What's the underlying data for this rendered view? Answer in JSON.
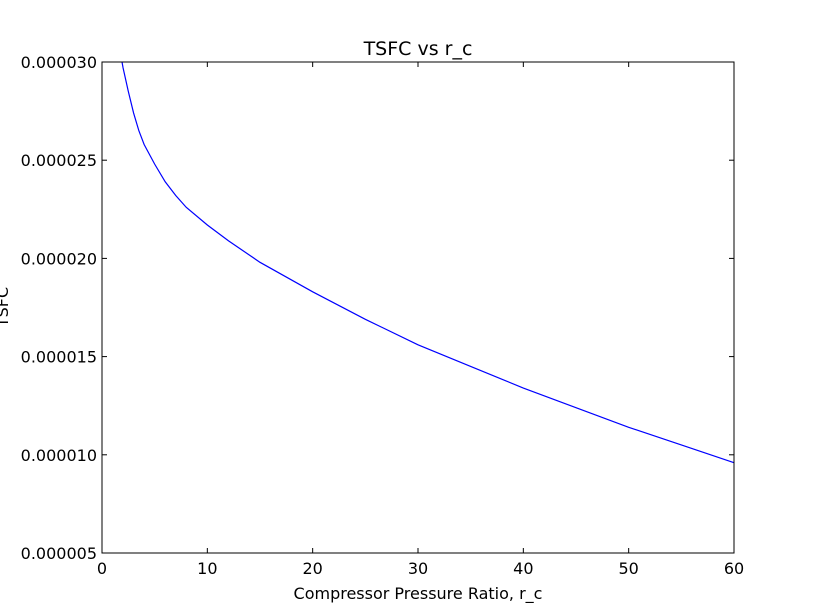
{
  "chart_data": {
    "type": "line",
    "title": "TSFC vs r_c",
    "xlabel": "Compressor Pressure Ratio, r_c",
    "ylabel": "TSFC",
    "xlim": [
      0,
      60
    ],
    "ylim": [
      5e-06,
      3e-05
    ],
    "xticks": [
      "0",
      "10",
      "20",
      "30",
      "40",
      "50",
      "60"
    ],
    "yticks": [
      "0.000005",
      "0.000010",
      "0.000015",
      "0.000020",
      "0.000025",
      "0.000030"
    ],
    "grid": false,
    "legend": "none",
    "series": [
      {
        "color": "#0000ff",
        "x": [
          1.9,
          2.0,
          2.5,
          3,
          3.5,
          4,
          5,
          6,
          7,
          8,
          10,
          12,
          15,
          20,
          25,
          30,
          35,
          40,
          45,
          50,
          55,
          60
        ],
        "y": [
          3e-05,
          2.97e-05,
          2.85e-05,
          2.74e-05,
          2.65e-05,
          2.58e-05,
          2.48e-05,
          2.39e-05,
          2.32e-05,
          2.26e-05,
          2.17e-05,
          2.09e-05,
          1.98e-05,
          1.83e-05,
          1.69e-05,
          1.56e-05,
          1.45e-05,
          1.34e-05,
          1.24e-05,
          1.14e-05,
          1.05e-05,
          9.6e-06
        ]
      }
    ]
  }
}
